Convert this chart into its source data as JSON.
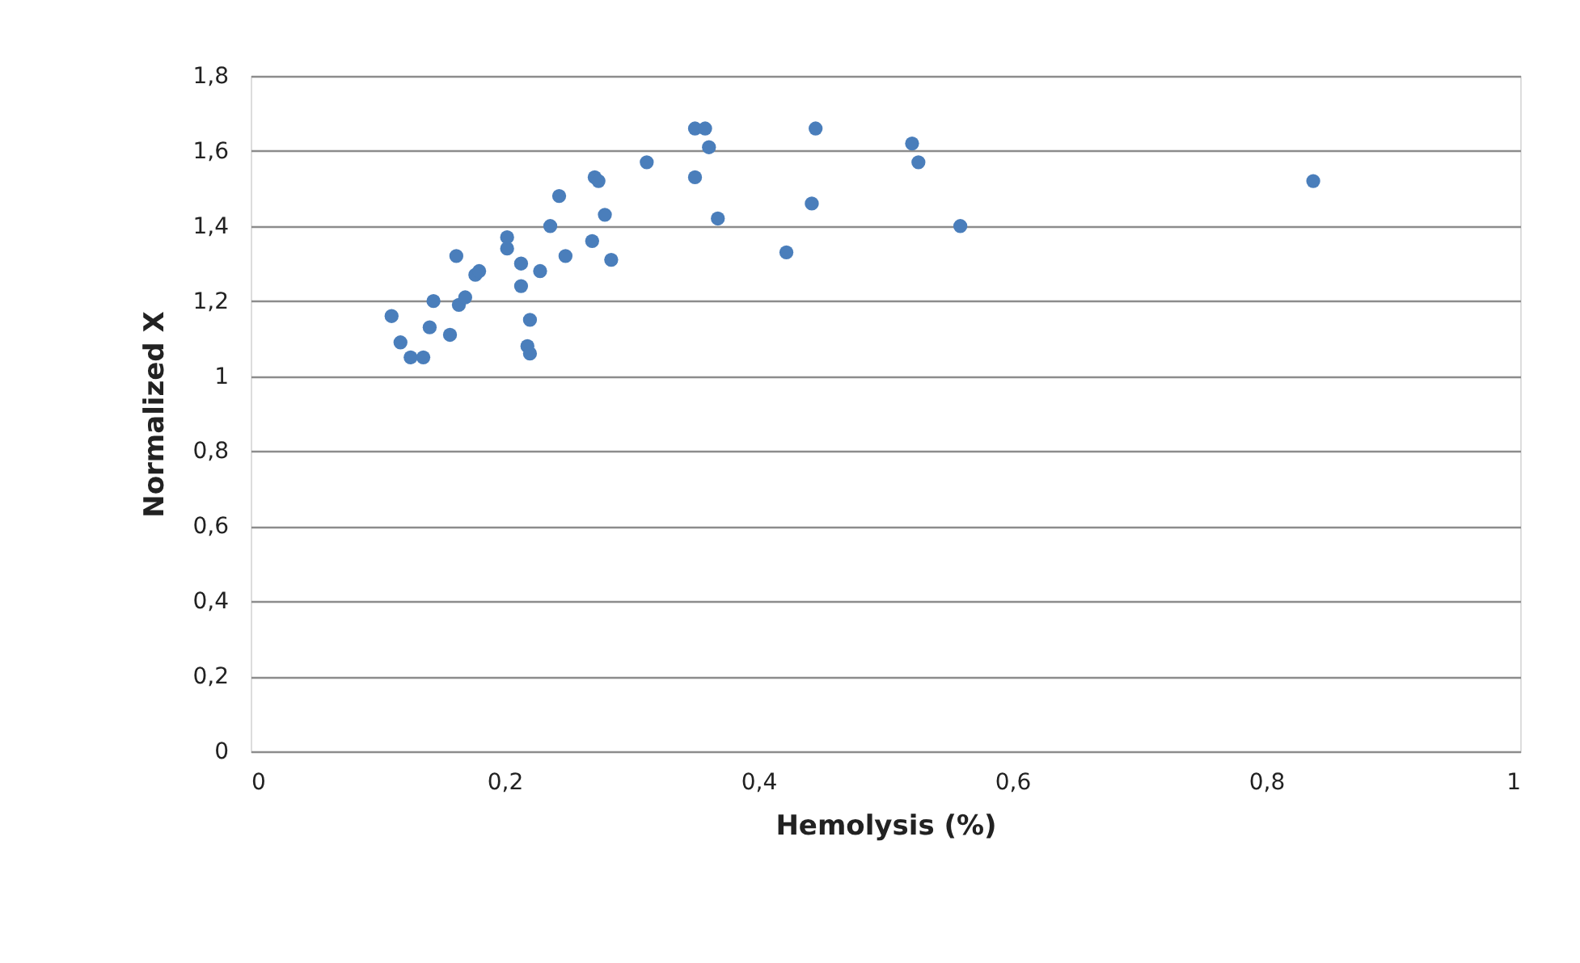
{
  "chart_data": {
    "type": "scatter",
    "xlabel": "Hemolysis (%)",
    "ylabel": "Normalized X",
    "x": [
      0.111,
      0.118,
      0.126,
      0.136,
      0.141,
      0.144,
      0.157,
      0.162,
      0.164,
      0.169,
      0.177,
      0.18,
      0.202,
      0.202,
      0.213,
      0.213,
      0.218,
      0.22,
      0.22,
      0.228,
      0.236,
      0.243,
      0.248,
      0.269,
      0.271,
      0.274,
      0.279,
      0.284,
      0.312,
      0.35,
      0.358,
      0.361,
      0.35,
      0.368,
      0.422,
      0.445,
      0.442,
      0.521,
      0.526,
      0.559,
      0.837
    ],
    "series": [
      {
        "color": "#4a7ebb",
        "values": [
          1.16,
          1.09,
          1.05,
          1.05,
          1.13,
          1.2,
          1.11,
          1.32,
          1.19,
          1.21,
          1.27,
          1.28,
          1.34,
          1.37,
          1.3,
          1.24,
          1.08,
          1.06,
          1.15,
          1.28,
          1.4,
          1.48,
          1.32,
          1.36,
          1.53,
          1.52,
          1.43,
          1.31,
          1.57,
          1.66,
          1.66,
          1.61,
          1.53,
          1.42,
          1.33,
          1.66,
          1.46,
          1.62,
          1.57,
          1.4,
          1.52
        ]
      }
    ],
    "xlim": [
      0,
      1
    ],
    "xticks": [
      {
        "value": 0,
        "label": "0"
      },
      {
        "value": 0.2,
        "label": "0,2"
      },
      {
        "value": 0.4,
        "label": "0,4"
      },
      {
        "value": 0.6,
        "label": "0,6"
      },
      {
        "value": 0.8,
        "label": "0,8"
      },
      {
        "value": 1,
        "label": "1"
      }
    ],
    "ylim": [
      0,
      1.8
    ],
    "yticks": [
      {
        "value": 0,
        "label": "0"
      },
      {
        "value": 0.2,
        "label": "0,2"
      },
      {
        "value": 0.4,
        "label": "0,4"
      },
      {
        "value": 0.6,
        "label": "0,6"
      },
      {
        "value": 0.8,
        "label": "0,8"
      },
      {
        "value": 1,
        "label": "1"
      },
      {
        "value": 1.2,
        "label": "1,2"
      },
      {
        "value": 1.4,
        "label": "1,4"
      },
      {
        "value": 1.6,
        "label": "1,6"
      },
      {
        "value": 1.8,
        "label": "1,8"
      }
    ],
    "grid": "y",
    "marker": "circle"
  }
}
